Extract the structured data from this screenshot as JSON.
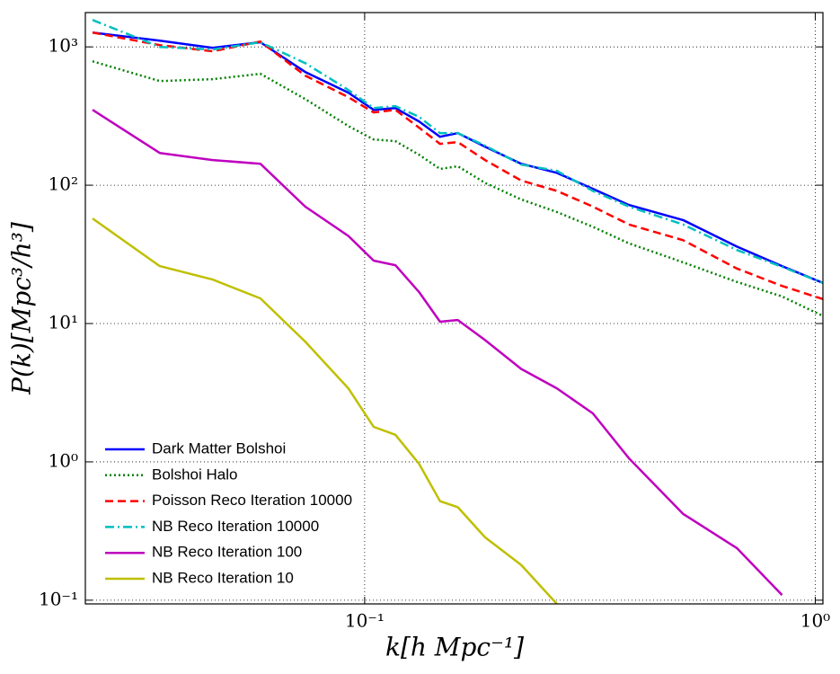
{
  "chart_data": {
    "type": "line",
    "xlabel": "k[h Mpc⁻¹]",
    "ylabel": "P(k)[Mpc³/h³]",
    "xscale": "log",
    "yscale": "log",
    "grid": true,
    "legend": "lower left",
    "xlim": [
      0.024,
      1.04
    ],
    "ylim": [
      0.094,
      1770
    ],
    "xticks": [
      {
        "value": 0.1,
        "label": "10⁻¹"
      },
      {
        "value": 1,
        "label": "10⁰"
      }
    ],
    "yticks": [
      {
        "value": 0.1,
        "label": "10⁻¹"
      },
      {
        "value": 1,
        "label": "10⁰"
      },
      {
        "value": 10,
        "label": "10¹"
      },
      {
        "value": 100,
        "label": "10²"
      },
      {
        "value": 1000,
        "label": "10³"
      }
    ],
    "x": [
      0.0249,
      0.0351,
      0.046,
      0.0587,
      0.0738,
      0.092,
      0.1047,
      0.117,
      0.132,
      0.147,
      0.161,
      0.185,
      0.2225,
      0.267,
      0.321,
      0.386,
      0.509,
      0.67,
      0.844,
      1.042
    ],
    "series": [
      {
        "name": "Dark Matter Bolshoi",
        "color": "#0000ff",
        "linestyle": "solid",
        "values": [
          1270,
          1110,
          985,
          1080,
          658,
          467,
          351,
          361,
          289,
          224,
          238,
          190,
          143,
          123,
          94,
          72,
          56,
          36,
          26,
          19.6
        ]
      },
      {
        "name": "Bolshoi Halo",
        "color": "#008000",
        "linestyle": "dotted",
        "values": [
          787,
          566,
          584,
          639,
          420,
          268,
          214,
          208,
          166,
          131,
          137,
          104,
          79,
          64,
          50,
          38,
          27.7,
          20,
          15.7,
          11.3
        ]
      },
      {
        "name": "Poisson Reco Iteration 10000",
        "color": "#ff0000",
        "linestyle": "dashed",
        "values": [
          1270,
          1030,
          929,
          1094,
          620,
          433,
          336,
          351,
          261,
          199,
          205,
          152,
          108,
          91,
          70,
          52,
          40,
          25,
          18.7,
          15
        ]
      },
      {
        "name": "NB Reco Iteration 10000",
        "color": "#00bfbf",
        "linestyle": "dashdot",
        "values": [
          1566,
          1000,
          957,
          1080,
          764,
          488,
          361,
          373,
          312,
          238,
          238,
          193,
          141,
          127,
          91,
          70,
          52,
          34,
          25.7,
          19.6
        ]
      },
      {
        "name": "NB Reco Iteration 100",
        "color": "#bf00bf",
        "linestyle": "solid",
        "values": [
          351,
          171,
          152,
          143,
          70,
          43,
          28.5,
          26.4,
          16.9,
          10.3,
          10.6,
          7.6,
          4.7,
          3.4,
          2.24,
          1.06,
          0.42,
          0.238,
          0.109,
          null
        ]
      },
      {
        "name": "NB Reco Iteration 10",
        "color": "#bfbf00",
        "linestyle": "solid",
        "values": [
          57.5,
          26,
          20.8,
          15.2,
          7.4,
          3.4,
          1.79,
          1.57,
          0.97,
          0.52,
          0.47,
          0.285,
          0.18,
          0.094,
          null,
          null,
          null,
          null,
          null,
          null
        ]
      }
    ]
  }
}
